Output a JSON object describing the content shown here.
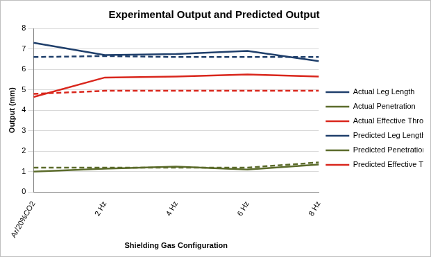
{
  "chart_data": {
    "type": "line",
    "title": "Experimental Output and Predicted Output",
    "x_label": "Shielding Gas Configuration",
    "y_label": "Output (mm)",
    "categories": [
      "Ar/20%CO2",
      "2 Hz",
      "4 Hz",
      "6 Hz",
      "8 Hz"
    ],
    "series": [
      {
        "name": "Actual Leg Length",
        "color": "#1f3f6b",
        "line_style": "solid",
        "marker": "none",
        "values": [
          7.3,
          6.7,
          6.75,
          6.9,
          6.4
        ]
      },
      {
        "name": "Actual Penetration",
        "color": "#5b6b2b",
        "line_style": "solid",
        "marker": "none",
        "values": [
          1.0,
          1.15,
          1.25,
          1.1,
          1.35
        ]
      },
      {
        "name": "Actual Effective Throat",
        "color": "#d9261c",
        "line_style": "solid",
        "marker": "none",
        "values": [
          4.65,
          5.6,
          5.65,
          5.75,
          5.65
        ]
      },
      {
        "name": "Predicted Leg Length",
        "color": "#1f3f6b",
        "line_style": "dashed",
        "marker": "none",
        "values": [
          6.6,
          6.65,
          6.6,
          6.6,
          6.6
        ]
      },
      {
        "name": "Predicted Penetration",
        "color": "#5b6b2b",
        "line_style": "dashed",
        "marker": "none",
        "values": [
          1.2,
          1.2,
          1.2,
          1.2,
          1.45
        ]
      },
      {
        "name": "Predicted Effective Throat",
        "color": "#d9261c",
        "line_style": "dashed",
        "marker": "none",
        "values": [
          4.8,
          4.95,
          4.95,
          4.95,
          4.95
        ]
      }
    ],
    "ylim": [
      0,
      8
    ],
    "yticks": [
      0,
      1,
      2,
      3,
      4,
      5,
      6,
      7,
      8
    ],
    "grid": true,
    "legend": "right"
  }
}
